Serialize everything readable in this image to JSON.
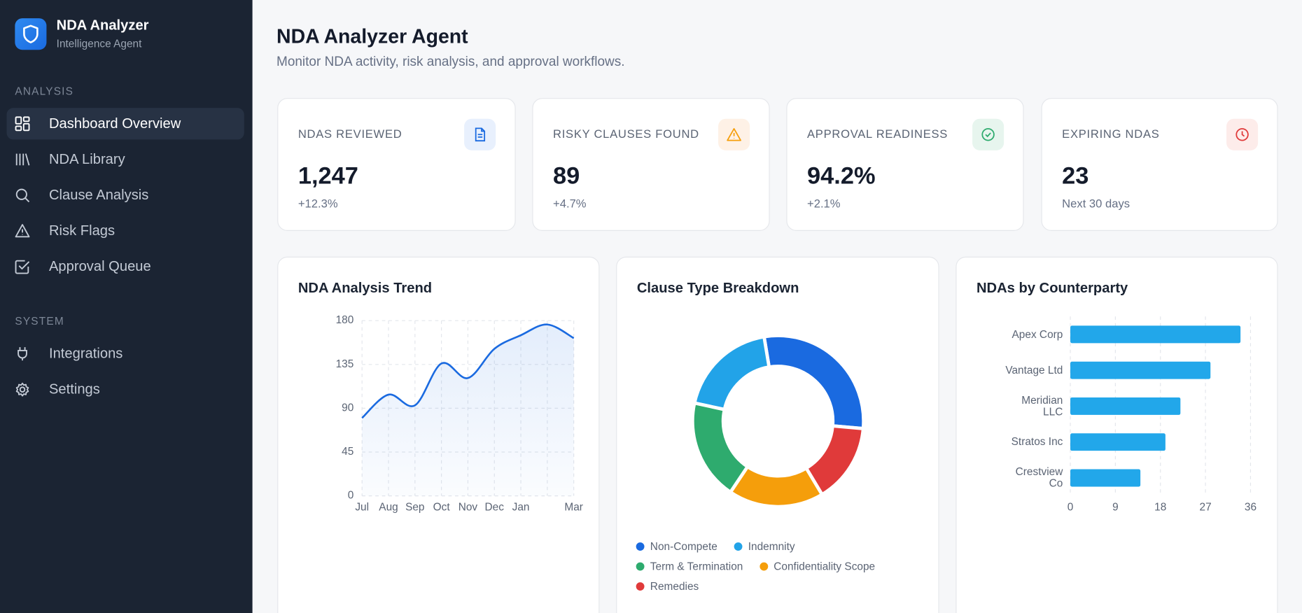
{
  "sidebar": {
    "app_title": "NDA Analyzer",
    "app_subtitle": "Intelligence Agent",
    "sections": [
      {
        "label": "ANALYSIS",
        "items": [
          "Dashboard Overview",
          "NDA Library",
          "Clause Analysis",
          "Risk Flags",
          "Approval Queue"
        ]
      },
      {
        "label": "SYSTEM",
        "items": [
          "Integrations",
          "Settings"
        ]
      }
    ]
  },
  "header": {
    "title": "NDA Analyzer Agent",
    "subtitle": "Monitor NDA activity, risk analysis, and approval workflows."
  },
  "kpis": [
    {
      "label": "NDAS REVIEWED",
      "value": "1,247",
      "delta": "+12.3%"
    },
    {
      "label": "RISKY CLAUSES FOUND",
      "value": "89",
      "delta": "+4.7%"
    },
    {
      "label": "APPROVAL READINESS",
      "value": "94.2%",
      "delta": "+2.1%"
    },
    {
      "label": "EXPIRING NDAS",
      "value": "23",
      "delta": "Next 30 days"
    }
  ],
  "chart_data": [
    {
      "type": "area",
      "title": "NDA Analysis Trend",
      "categories": [
        "Jul",
        "Aug",
        "Sep",
        "Oct",
        "Nov",
        "Dec",
        "Jan",
        null,
        "Mar"
      ],
      "values": [
        80,
        104,
        93,
        136,
        121,
        151,
        165,
        176,
        162
      ],
      "color": "#1a6ae0",
      "ylim": [
        0,
        180
      ],
      "yticks": [
        0,
        45,
        90,
        135,
        180
      ],
      "grid": true
    },
    {
      "type": "donut",
      "title": "Clause Type Breakdown",
      "categories": [
        "Non-Compete",
        "Indemnity",
        "Term & Termination",
        "Confidentiality Scope",
        "Remedies"
      ],
      "values": [
        29,
        19,
        19,
        18,
        15
      ],
      "colors": [
        "#1a6ae0",
        "#22a3e8",
        "#2eab6e",
        "#f59e0b",
        "#e03a3a"
      ]
    },
    {
      "type": "hbar",
      "title": "NDAs by Counterparty",
      "categories": [
        "Apex Corp",
        "Vantage Ltd",
        "Meridian LLC",
        "Stratos Inc",
        "Crestview Co"
      ],
      "values": [
        34,
        28,
        22,
        19,
        14
      ],
      "color": "#22a7ea",
      "xlim": [
        0,
        36
      ],
      "xticks": [
        0,
        9,
        18,
        27,
        36
      ],
      "grid": true
    }
  ]
}
